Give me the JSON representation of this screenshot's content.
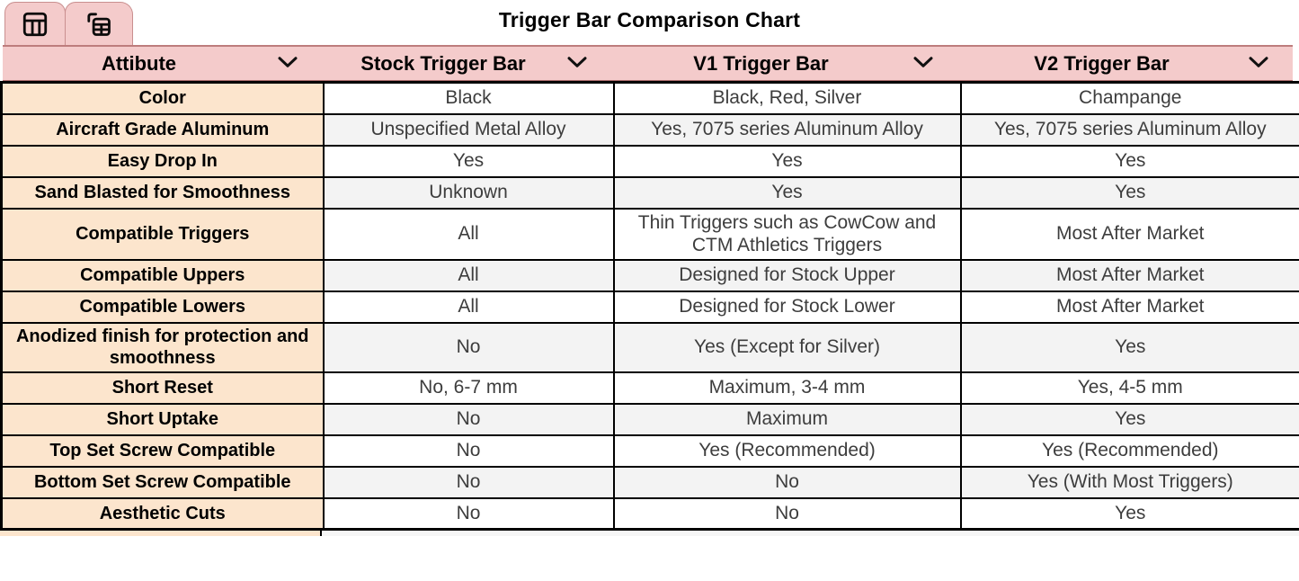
{
  "title": "Trigger Bar Comparison Chart",
  "toolbar": {
    "tabs": [
      {
        "name": "table-chart-tab",
        "icon": "table-chart-icon"
      },
      {
        "name": "table-view-tab",
        "icon": "table-view-icon"
      }
    ]
  },
  "colors": {
    "header_pink": "#f4cbcb",
    "attribute_peach": "#fce5cd",
    "alt_row_gray": "#f3f3f3",
    "border_black": "#000000",
    "cell_text": "#3d3d3d"
  },
  "table": {
    "columns": [
      {
        "label": "Attibute"
      },
      {
        "label": "Stock Trigger Bar"
      },
      {
        "label": "V1 Trigger Bar"
      },
      {
        "label": "V2 Trigger Bar"
      }
    ],
    "rows": [
      {
        "attribute": "Color",
        "stock": "Black",
        "v1": "Black, Red, Silver",
        "v2": "Champange"
      },
      {
        "attribute": "Aircraft Grade Aluminum",
        "stock": "Unspecified Metal Alloy",
        "v1": "Yes, 7075 series Aluminum Alloy",
        "v2": "Yes, 7075 series Aluminum Alloy"
      },
      {
        "attribute": "Easy Drop In",
        "stock": "Yes",
        "v1": "Yes",
        "v2": "Yes"
      },
      {
        "attribute": "Sand Blasted for Smoothness",
        "stock": "Unknown",
        "v1": "Yes",
        "v2": "Yes"
      },
      {
        "attribute": "Compatible Triggers",
        "stock": "All",
        "v1": "Thin Triggers such as CowCow and CTM Athletics Triggers",
        "v2": "Most After Market"
      },
      {
        "attribute": "Compatible Uppers",
        "stock": "All",
        "v1": "Designed for Stock Upper",
        "v2": "Most After Market"
      },
      {
        "attribute": "Compatible Lowers",
        "stock": "All",
        "v1": "Designed for Stock Lower",
        "v2": "Most After Market"
      },
      {
        "attribute": "Anodized finish for protection and smoothness",
        "stock": "No",
        "v1": "Yes (Except for Silver)",
        "v2": "Yes"
      },
      {
        "attribute": "Short Reset",
        "stock": "No, 6-7 mm",
        "v1": "Maximum, 3-4 mm",
        "v2": "Yes, 4-5 mm"
      },
      {
        "attribute": "Short Uptake",
        "stock": "No",
        "v1": "Maximum",
        "v2": "Yes"
      },
      {
        "attribute": "Top Set Screw Compatible",
        "stock": "No",
        "v1": "Yes (Recommended)",
        "v2": "Yes (Recommended)"
      },
      {
        "attribute": "Bottom Set Screw Compatible",
        "stock": "No",
        "v1": "No",
        "v2": "Yes (With Most Triggers)"
      },
      {
        "attribute": "Aesthetic Cuts",
        "stock": "No",
        "v1": "No",
        "v2": "Yes"
      }
    ]
  }
}
